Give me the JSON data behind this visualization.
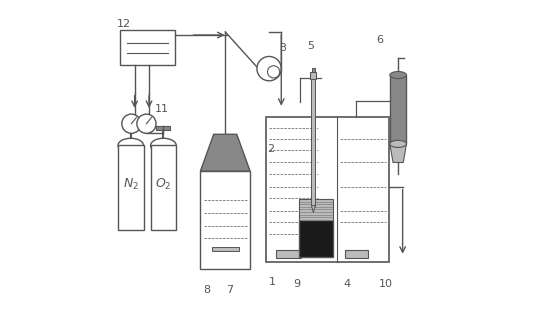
{
  "bg_color": "#ffffff",
  "line_color": "#555555",
  "gray_fill": "#aaaaaa",
  "dark_gray": "#666666",
  "dark_fill": "#1a1a1a",
  "light_gray": "#bbbbbb",
  "medium_gray": "#888888",
  "fig_width": 5.35,
  "fig_height": 3.23
}
